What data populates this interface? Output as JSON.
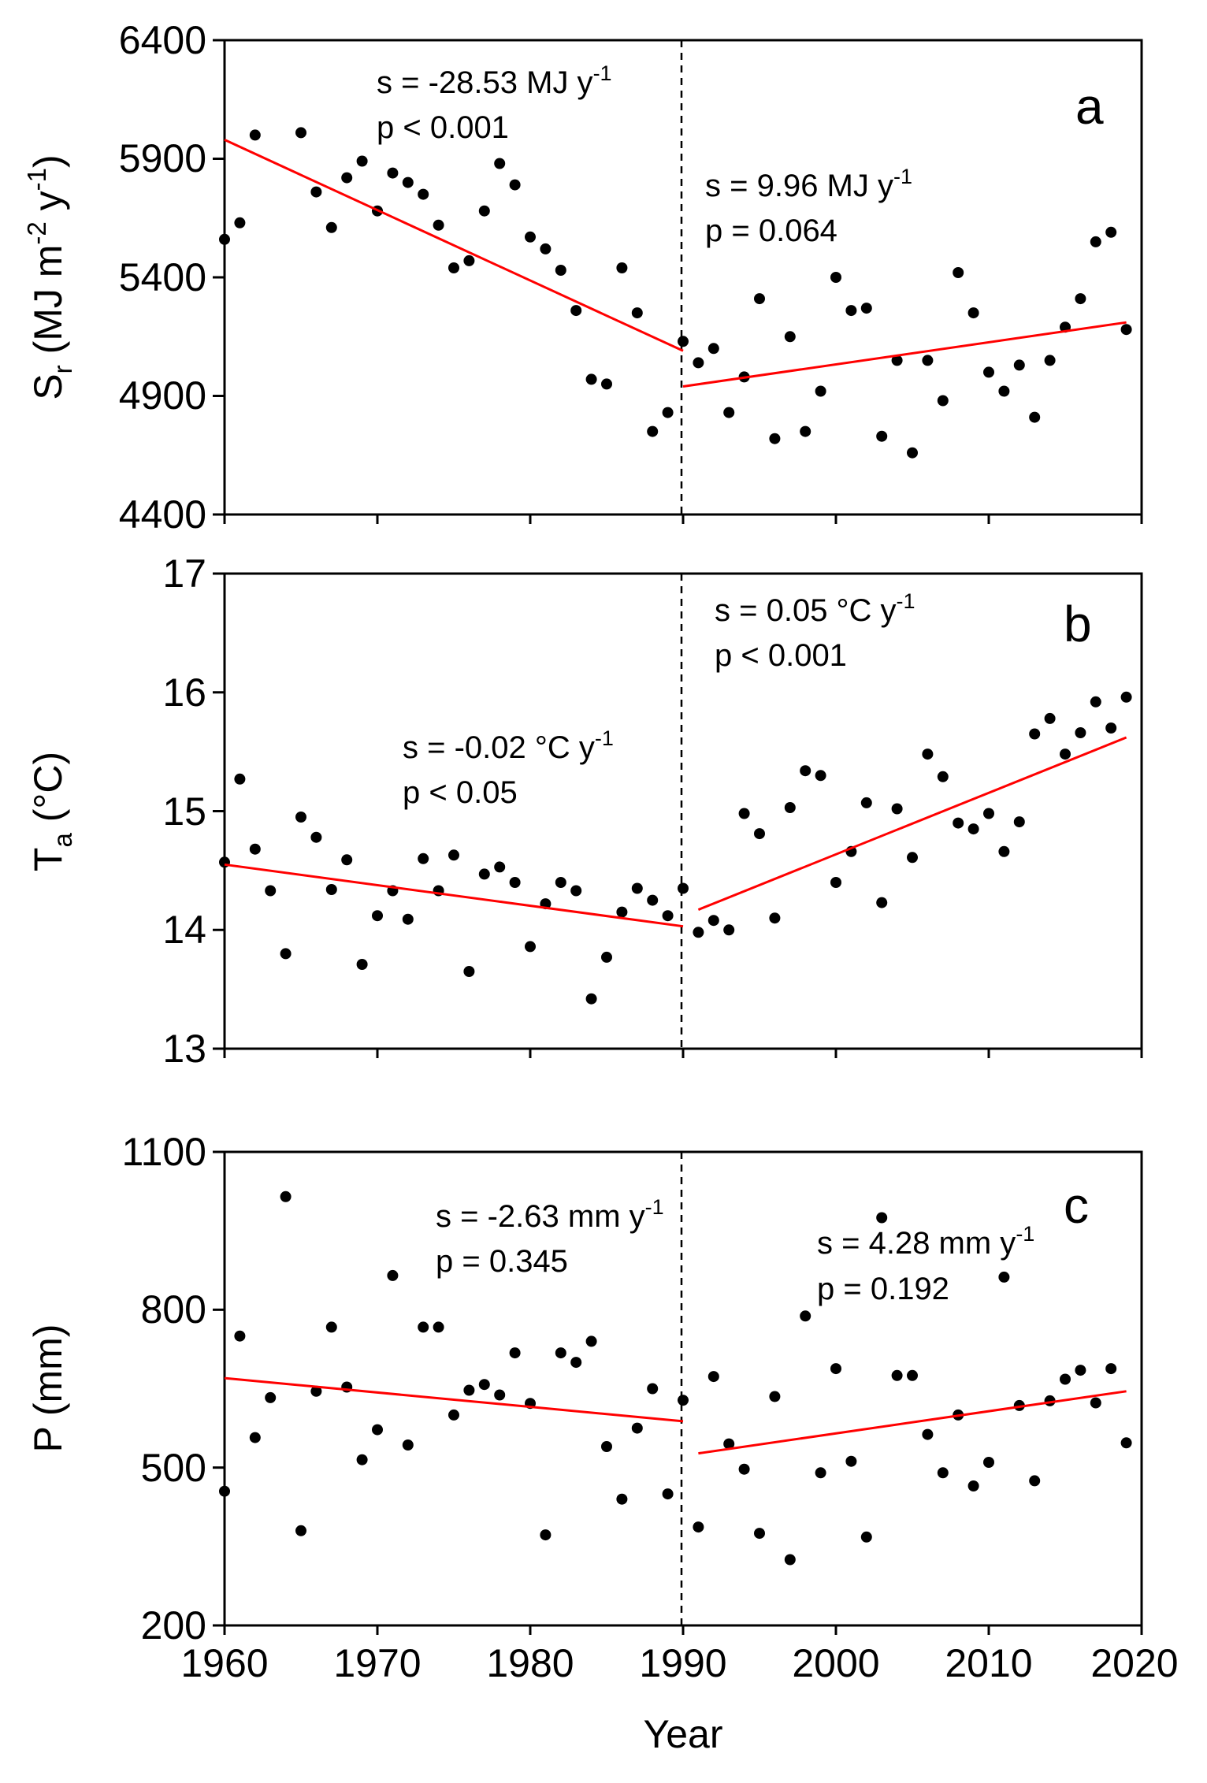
{
  "chart_data": [
    {
      "type": "scatter",
      "panel": "a",
      "ylabel_main": "S",
      "ylabel_sub": "r",
      "ylabel_unit_pre": " (MJ m",
      "ylabel_unit_exp1": "-2",
      "ylabel_unit_mid": " y",
      "ylabel_unit_exp2": "-1",
      "ylabel_unit_post": ")",
      "xlim": [
        1960,
        2020
      ],
      "ylim": [
        4400,
        6400
      ],
      "yticks": [
        4400,
        4900,
        5400,
        5900,
        6400
      ],
      "x": [
        1960,
        1961,
        1962,
        1963,
        1964,
        1965,
        1966,
        1967,
        1968,
        1969,
        1970,
        1971,
        1972,
        1973,
        1974,
        1975,
        1976,
        1977,
        1978,
        1979,
        1980,
        1981,
        1982,
        1983,
        1984,
        1985,
        1986,
        1987,
        1988,
        1989,
        1990,
        1991,
        1992,
        1993,
        1994,
        1995,
        1996,
        1997,
        1998,
        1999,
        2000,
        2001,
        2002,
        2003,
        2004,
        2005,
        2006,
        2007,
        2008,
        2009,
        2010,
        2011,
        2012,
        2013,
        2014,
        2015,
        2016,
        2017,
        2018,
        2019
      ],
      "y": [
        5560,
        5630,
        6000,
        null,
        null,
        6010,
        5760,
        5610,
        5820,
        5890,
        5680,
        5840,
        5800,
        5750,
        5620,
        5440,
        5470,
        5680,
        5880,
        5790,
        5570,
        5520,
        5430,
        5260,
        4970,
        4950,
        5440,
        5250,
        4750,
        4830,
        5130,
        5040,
        5100,
        4830,
        4980,
        5310,
        4720,
        5150,
        4750,
        4920,
        5400,
        5260,
        5270,
        4730,
        5050,
        4660,
        5050,
        4880,
        5420,
        5250,
        5000,
        4920,
        5030,
        4810,
        5050,
        5190,
        5310,
        5550,
        5590,
        5180
      ],
      "trend": [
        {
          "x0": 1960,
          "y0": 5980,
          "x1": 1990,
          "y1": 5090,
          "s_text": "s = -28.53 MJ y",
          "s_exp": "-1",
          "p_text": "p < 0.001"
        },
        {
          "x0": 1990,
          "y0": 4940,
          "x1": 2019,
          "y1": 5210,
          "s_text": "s = 9.96 MJ y",
          "s_exp": "-1",
          "p_text": "p = 0.064"
        }
      ]
    },
    {
      "type": "scatter",
      "panel": "b",
      "ylabel_main": "T",
      "ylabel_sub": "a",
      "ylabel_unit_pre": " (°C)",
      "xlim": [
        1960,
        2020
      ],
      "ylim": [
        13,
        17
      ],
      "yticks": [
        13,
        14,
        15,
        16,
        17
      ],
      "x": [
        1960,
        1961,
        1962,
        1963,
        1964,
        1965,
        1966,
        1967,
        1968,
        1969,
        1970,
        1971,
        1972,
        1973,
        1974,
        1975,
        1976,
        1977,
        1978,
        1979,
        1980,
        1981,
        1982,
        1983,
        1984,
        1985,
        1986,
        1987,
        1988,
        1989,
        1990,
        1991,
        1992,
        1993,
        1994,
        1995,
        1996,
        1997,
        1998,
        1999,
        2000,
        2001,
        2002,
        2003,
        2004,
        2005,
        2006,
        2007,
        2008,
        2009,
        2010,
        2011,
        2012,
        2013,
        2014,
        2015,
        2016,
        2017,
        2018,
        2019
      ],
      "y": [
        14.57,
        15.27,
        14.68,
        14.33,
        13.8,
        14.95,
        14.78,
        14.34,
        14.59,
        13.71,
        14.12,
        14.33,
        14.09,
        14.6,
        14.33,
        14.63,
        13.65,
        14.47,
        14.53,
        14.4,
        13.86,
        14.22,
        14.4,
        14.33,
        13.42,
        13.77,
        14.15,
        14.35,
        14.25,
        14.12,
        14.35,
        13.98,
        14.08,
        14.0,
        14.98,
        14.81,
        14.1,
        15.03,
        15.34,
        15.3,
        14.4,
        14.66,
        15.07,
        14.23,
        15.02,
        14.61,
        15.48,
        15.29,
        14.9,
        14.85,
        14.98,
        14.66,
        14.91,
        15.65,
        15.78,
        15.48,
        15.66,
        15.92,
        15.7,
        15.96
      ],
      "trend": [
        {
          "x0": 1960,
          "y0": 14.55,
          "x1": 1990,
          "y1": 14.03,
          "s_text": "s = -0.02 °C y",
          "s_exp": "-1",
          "p_text": "p < 0.05"
        },
        {
          "x0": 1991,
          "y0": 14.17,
          "x1": 2019,
          "y1": 15.62,
          "s_text": "s = 0.05 °C y",
          "s_exp": "-1",
          "p_text": "p < 0.001"
        }
      ]
    },
    {
      "type": "scatter",
      "panel": "c",
      "ylabel_main": "P (mm)",
      "xlabel": "Year",
      "xlim": [
        1960,
        2020
      ],
      "ylim": [
        200,
        1100
      ],
      "yticks": [
        200,
        500,
        800,
        1100
      ],
      "xticks": [
        1960,
        1970,
        1980,
        1990,
        2000,
        2010,
        2020
      ],
      "x": [
        1960,
        1961,
        1962,
        1963,
        1964,
        1965,
        1966,
        1967,
        1968,
        1969,
        1970,
        1971,
        1972,
        1973,
        1974,
        1975,
        1976,
        1977,
        1978,
        1979,
        1980,
        1981,
        1982,
        1983,
        1984,
        1985,
        1986,
        1987,
        1988,
        1989,
        1990,
        1991,
        1992,
        1993,
        1994,
        1995,
        1996,
        1997,
        1998,
        1999,
        2000,
        2001,
        2002,
        2003,
        2004,
        2005,
        2006,
        2007,
        2008,
        2009,
        2010,
        2011,
        2012,
        2013,
        2014,
        2015,
        2016,
        2017,
        2018,
        2019
      ],
      "y": [
        455,
        750,
        557,
        633,
        1015,
        380,
        645,
        767,
        653,
        515,
        572,
        865,
        543,
        767,
        767,
        600,
        647,
        658,
        638,
        718,
        622,
        372,
        718,
        700,
        740,
        540,
        440,
        575,
        650,
        450,
        628,
        387,
        673,
        545,
        497,
        375,
        635,
        325,
        788,
        490,
        688,
        512,
        368,
        975,
        675,
        675,
        563,
        490,
        600,
        465,
        510,
        862,
        618,
        475,
        627,
        668,
        685,
        623,
        688,
        547
      ],
      "trend": [
        {
          "x0": 1960,
          "y0": 670,
          "x1": 1990,
          "y1": 588,
          "s_text": "s = -2.63 mm y",
          "s_exp": "-1",
          "p_text": "p = 0.345"
        },
        {
          "x0": 1991,
          "y0": 527,
          "x1": 2019,
          "y1": 645,
          "s_text": "s = 4.28 mm y",
          "s_exp": "-1",
          "p_text": "p = 0.192"
        }
      ]
    }
  ]
}
